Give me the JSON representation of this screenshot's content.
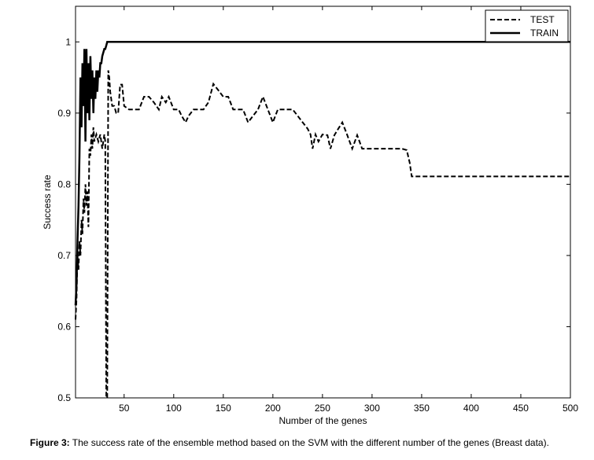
{
  "caption": {
    "label": "Figure 3:",
    "text": " The success rate of the ensemble method based on the SVM with the different number of the genes (Breast data)."
  },
  "chart_data": {
    "type": "line",
    "title": "",
    "xlabel": "Number of the genes",
    "ylabel": "Success rate",
    "xlim": [
      1,
      500
    ],
    "ylim": [
      0.5,
      1.05
    ],
    "xticks": [
      50,
      100,
      150,
      200,
      250,
      300,
      350,
      400,
      450,
      500
    ],
    "yticks": [
      0.5,
      0.6,
      0.7,
      0.8,
      0.9,
      1
    ],
    "ytick_labels": [
      "0.5",
      "0.6",
      "0.7",
      "0.8",
      "0.9",
      "1"
    ],
    "grid": false,
    "legend_position": "top-right",
    "series": [
      {
        "name": "TEST",
        "style": "dashed",
        "color": "#000000",
        "points": [
          [
            1,
            0.61
          ],
          [
            2,
            0.64
          ],
          [
            3,
            0.7
          ],
          [
            4,
            0.68
          ],
          [
            5,
            0.72
          ],
          [
            6,
            0.7
          ],
          [
            7,
            0.75
          ],
          [
            8,
            0.73
          ],
          [
            9,
            0.78
          ],
          [
            10,
            0.76
          ],
          [
            11,
            0.8
          ],
          [
            12,
            0.77
          ],
          [
            13,
            0.79
          ],
          [
            14,
            0.74
          ],
          [
            15,
            0.85
          ],
          [
            16,
            0.84
          ],
          [
            17,
            0.87
          ],
          [
            18,
            0.85
          ],
          [
            19,
            0.88
          ],
          [
            20,
            0.86
          ],
          [
            22,
            0.87
          ],
          [
            24,
            0.86
          ],
          [
            26,
            0.87
          ],
          [
            28,
            0.85
          ],
          [
            30,
            0.87
          ],
          [
            31,
            0.86
          ],
          [
            32,
            0.5
          ],
          [
            33,
            0.5
          ],
          [
            34,
            0.96
          ],
          [
            35,
            0.95
          ],
          [
            36,
            0.93
          ],
          [
            38,
            0.91
          ],
          [
            40,
            0.91
          ],
          [
            42,
            0.9
          ],
          [
            44,
            0.9
          ],
          [
            46,
            0.94
          ],
          [
            48,
            0.94
          ],
          [
            50,
            0.91
          ],
          [
            55,
            0.905
          ],
          [
            60,
            0.905
          ],
          [
            65,
            0.905
          ],
          [
            70,
            0.923
          ],
          [
            75,
            0.923
          ],
          [
            80,
            0.915
          ],
          [
            85,
            0.905
          ],
          [
            88,
            0.923
          ],
          [
            92,
            0.915
          ],
          [
            95,
            0.923
          ],
          [
            100,
            0.905
          ],
          [
            105,
            0.905
          ],
          [
            108,
            0.896
          ],
          [
            112,
            0.887
          ],
          [
            115,
            0.896
          ],
          [
            120,
            0.905
          ],
          [
            125,
            0.905
          ],
          [
            130,
            0.905
          ],
          [
            135,
            0.915
          ],
          [
            140,
            0.941
          ],
          [
            145,
            0.932
          ],
          [
            150,
            0.923
          ],
          [
            155,
            0.923
          ],
          [
            160,
            0.905
          ],
          [
            165,
            0.905
          ],
          [
            170,
            0.905
          ],
          [
            175,
            0.887
          ],
          [
            180,
            0.896
          ],
          [
            185,
            0.905
          ],
          [
            190,
            0.923
          ],
          [
            195,
            0.905
          ],
          [
            200,
            0.887
          ],
          [
            205,
            0.905
          ],
          [
            210,
            0.905
          ],
          [
            215,
            0.905
          ],
          [
            220,
            0.905
          ],
          [
            225,
            0.896
          ],
          [
            230,
            0.887
          ],
          [
            235,
            0.878
          ],
          [
            238,
            0.87
          ],
          [
            240,
            0.85
          ],
          [
            243,
            0.87
          ],
          [
            246,
            0.86
          ],
          [
            250,
            0.87
          ],
          [
            255,
            0.869
          ],
          [
            258,
            0.85
          ],
          [
            262,
            0.869
          ],
          [
            266,
            0.878
          ],
          [
            270,
            0.887
          ],
          [
            275,
            0.869
          ],
          [
            280,
            0.85
          ],
          [
            285,
            0.869
          ],
          [
            290,
            0.85
          ],
          [
            300,
            0.85
          ],
          [
            310,
            0.85
          ],
          [
            320,
            0.85
          ],
          [
            330,
            0.85
          ],
          [
            335,
            0.848
          ],
          [
            338,
            0.83
          ],
          [
            340,
            0.811
          ],
          [
            350,
            0.811
          ],
          [
            400,
            0.811
          ],
          [
            450,
            0.811
          ],
          [
            500,
            0.811
          ]
        ]
      },
      {
        "name": "TRAIN",
        "style": "solid",
        "color": "#000000",
        "points": [
          [
            1,
            0.63
          ],
          [
            2,
            0.66
          ],
          [
            3,
            0.72
          ],
          [
            4,
            0.77
          ],
          [
            5,
            0.84
          ],
          [
            6,
            0.95
          ],
          [
            7,
            0.88
          ],
          [
            8,
            0.97
          ],
          [
            9,
            0.91
          ],
          [
            10,
            0.99
          ],
          [
            11,
            0.86
          ],
          [
            12,
            0.99
          ],
          [
            13,
            0.9
          ],
          [
            14,
            0.97
          ],
          [
            15,
            0.89
          ],
          [
            16,
            0.98
          ],
          [
            17,
            0.92
          ],
          [
            18,
            0.96
          ],
          [
            19,
            0.9
          ],
          [
            20,
            0.95
          ],
          [
            21,
            0.92
          ],
          [
            22,
            0.96
          ],
          [
            23,
            0.93
          ],
          [
            24,
            0.96
          ],
          [
            25,
            0.95
          ],
          [
            26,
            0.97
          ],
          [
            27,
            0.97
          ],
          [
            28,
            0.98
          ],
          [
            29,
            0.985
          ],
          [
            30,
            0.99
          ],
          [
            31,
            0.99
          ],
          [
            32,
            0.995
          ],
          [
            33,
            1.0
          ],
          [
            35,
            1.0
          ],
          [
            100,
            1.0
          ],
          [
            200,
            1.0
          ],
          [
            300,
            1.0
          ],
          [
            400,
            1.0
          ],
          [
            500,
            1.0
          ]
        ]
      }
    ]
  }
}
